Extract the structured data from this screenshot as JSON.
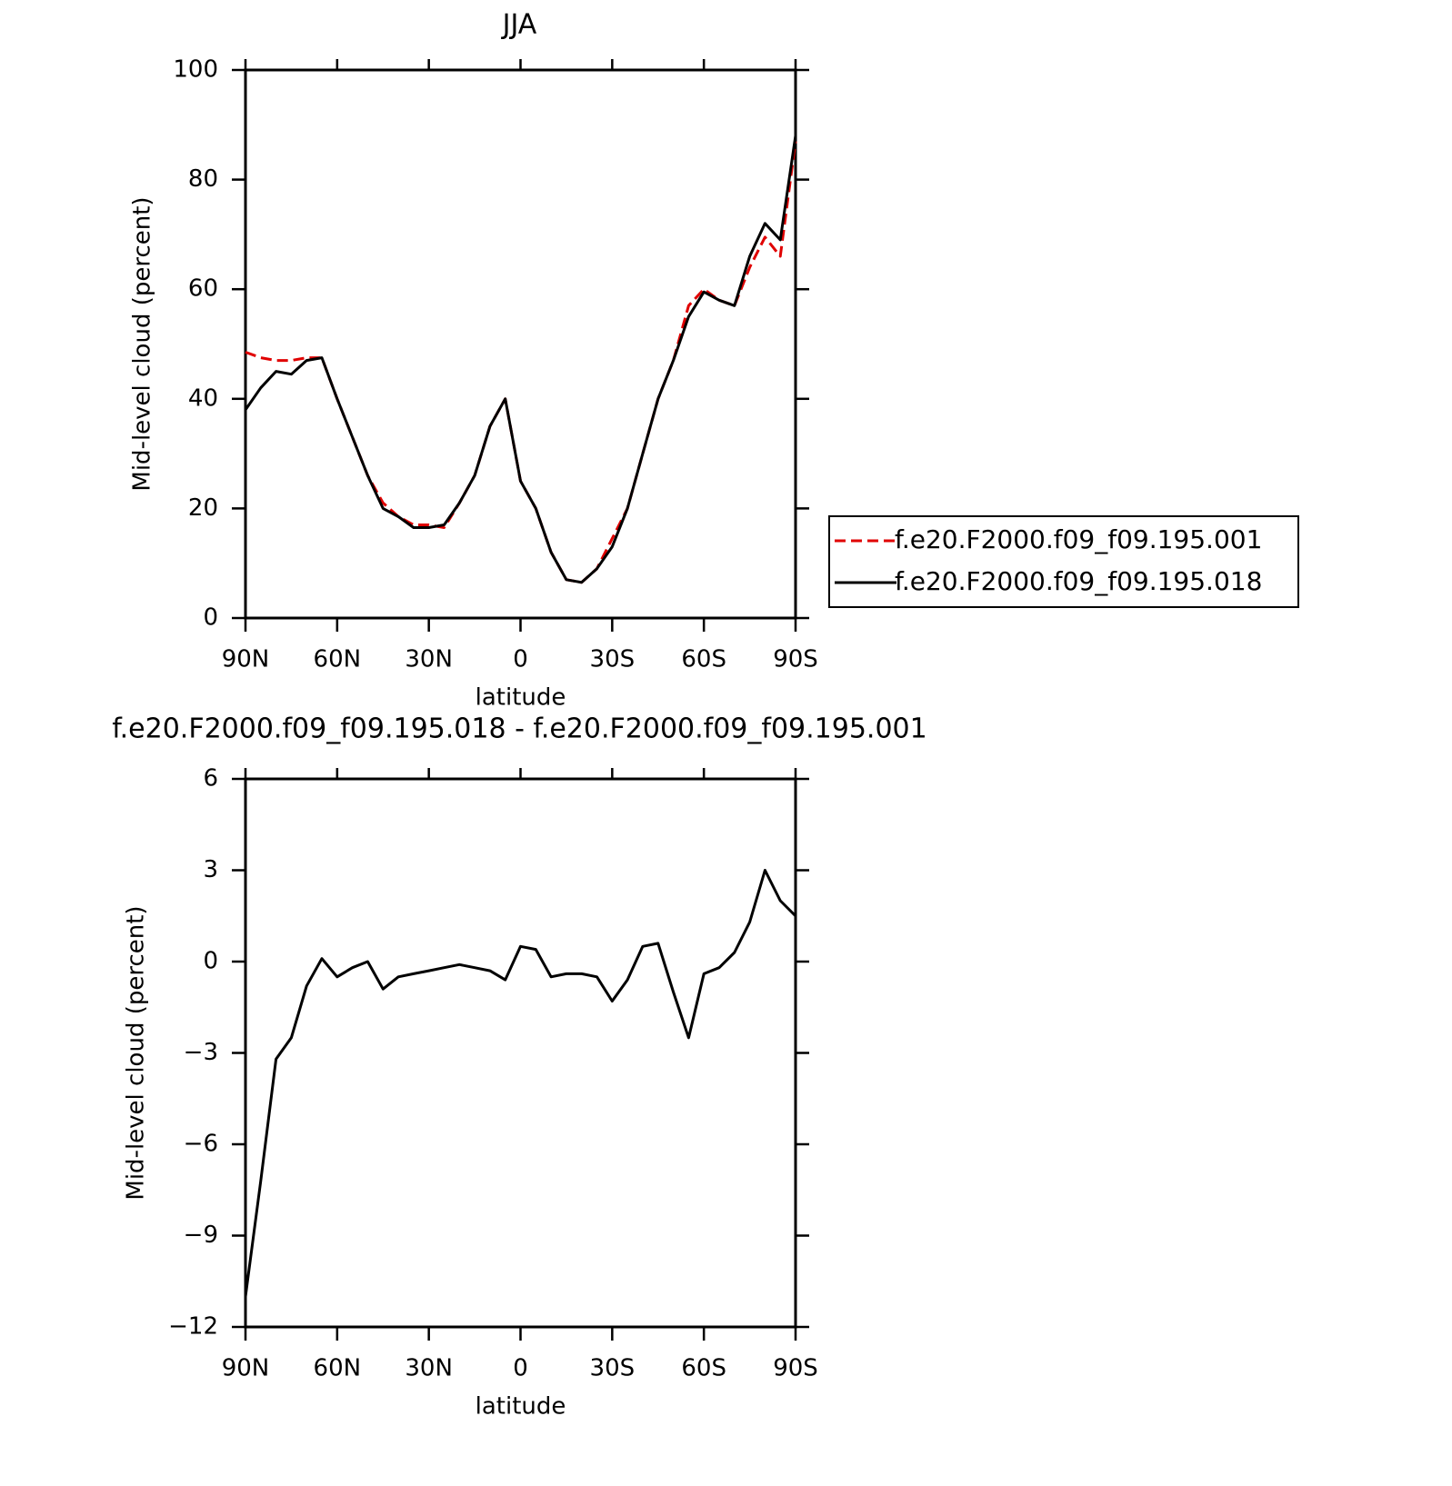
{
  "chart_data": [
    {
      "type": "line",
      "title": "JJA",
      "x_label": "latitude",
      "y_label": "Mid-level cloud (percent)",
      "x": [
        90,
        85,
        80,
        75,
        70,
        65,
        60,
        55,
        50,
        45,
        40,
        35,
        30,
        25,
        20,
        15,
        10,
        5,
        0,
        -5,
        -10,
        -15,
        -20,
        -25,
        -30,
        -35,
        -40,
        -45,
        -50,
        -55,
        -60,
        -65,
        -70,
        -75,
        -80,
        -85,
        -90
      ],
      "series": [
        {
          "name": "f.e20.F2000.f09_f09.195.001",
          "color": "#e00000",
          "dash": "dashed",
          "values": [
            48.5,
            47.5,
            47,
            47,
            47.5,
            47.5,
            40,
            33,
            26,
            21,
            18.5,
            17,
            17,
            16.5,
            21,
            26,
            35,
            40,
            25,
            20,
            12,
            7,
            6.5,
            9,
            14.5,
            20,
            30,
            40,
            47,
            57,
            60,
            58,
            57,
            64,
            69.5,
            66,
            87
          ]
        },
        {
          "name": "f.e20.F2000.f09_f09.195.018",
          "color": "#000000",
          "dash": "solid",
          "values": [
            38,
            42,
            45,
            44.5,
            47,
            47.5,
            40,
            33,
            26,
            20,
            18.5,
            16.5,
            16.5,
            17,
            21,
            26,
            35,
            40,
            25,
            20,
            12,
            7,
            6.5,
            9,
            13,
            20,
            30,
            40,
            47,
            55,
            59.5,
            58,
            57,
            66,
            72,
            69,
            88
          ]
        }
      ],
      "xlim": [
        90,
        -90
      ],
      "xticks": [
        {
          "value": 90,
          "label": "90N"
        },
        {
          "value": 60,
          "label": "60N"
        },
        {
          "value": 30,
          "label": "30N"
        },
        0,
        {
          "value": -30,
          "label": "30S"
        },
        {
          "value": -60,
          "label": "60S"
        },
        {
          "value": -90,
          "label": "90S"
        }
      ],
      "ylim": [
        0,
        100
      ],
      "yticks": [
        0,
        20,
        40,
        60,
        80,
        100
      ],
      "legend": "outside-right"
    },
    {
      "type": "line",
      "title": "f.e20.F2000.f09_f09.195.018 - f.e20.F2000.f09_f09.195.001",
      "x_label": "latitude",
      "y_label": "Mid-level cloud (percent)",
      "x": [
        90,
        85,
        80,
        75,
        70,
        65,
        60,
        55,
        50,
        45,
        40,
        35,
        30,
        25,
        20,
        15,
        10,
        5,
        0,
        -5,
        -10,
        -15,
        -20,
        -25,
        -30,
        -35,
        -40,
        -45,
        -50,
        -55,
        -60,
        -65,
        -70,
        -75,
        -80,
        -85,
        -90
      ],
      "series": [
        {
          "color": "#000000",
          "dash": "solid",
          "values": [
            -11,
            -7.2,
            -3.2,
            -2.5,
            -0.8,
            0.1,
            -0.5,
            -0.2,
            0,
            -0.9,
            -0.5,
            -0.4,
            -0.3,
            -0.2,
            -0.1,
            -0.2,
            -0.3,
            -0.6,
            0.5,
            0.4,
            -0.5,
            -0.4,
            -0.4,
            -0.5,
            -1.3,
            -0.6,
            0.5,
            0.6,
            -1,
            -2.5,
            -0.4,
            -0.2,
            0.3,
            1.3,
            3,
            2,
            1.5
          ]
        }
      ],
      "xlim": [
        90,
        -90
      ],
      "xticks": [
        {
          "value": 90,
          "label": "90N"
        },
        {
          "value": 60,
          "label": "60N"
        },
        {
          "value": 30,
          "label": "30N"
        },
        0,
        {
          "value": -30,
          "label": "30S"
        },
        {
          "value": -60,
          "label": "60S"
        },
        {
          "value": -90,
          "label": "90S"
        }
      ],
      "ylim": [
        -12,
        6
      ],
      "yticks": [
        {
          "value": -12,
          "label": "−12"
        },
        {
          "value": -9,
          "label": "−9"
        },
        {
          "value": -6,
          "label": "−6"
        },
        {
          "value": -3,
          "label": "−3"
        },
        0,
        3,
        6
      ]
    }
  ]
}
